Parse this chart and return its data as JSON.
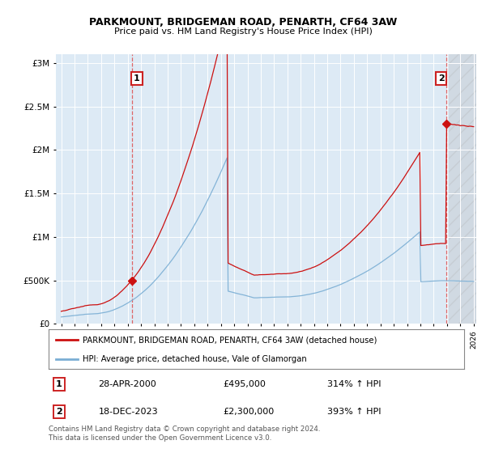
{
  "title1": "PARKMOUNT, BRIDGEMAN ROAD, PENARTH, CF64 3AW",
  "title2": "Price paid vs. HM Land Registry's House Price Index (HPI)",
  "legend_label1": "PARKMOUNT, BRIDGEMAN ROAD, PENARTH, CF64 3AW (detached house)",
  "legend_label2": "HPI: Average price, detached house, Vale of Glamorgan",
  "annotation1_date": "28-APR-2000",
  "annotation1_price": 495000,
  "annotation1_price_str": "£495,000",
  "annotation1_text": "314% ↑ HPI",
  "annotation2_date": "18-DEC-2023",
  "annotation2_price": 2300000,
  "annotation2_price_str": "£2,300,000",
  "annotation2_text": "393% ↑ HPI",
  "footnote": "Contains HM Land Registry data © Crown copyright and database right 2024.\nThis data is licensed under the Open Government Licence v3.0.",
  "hpi_color": "#7aaed4",
  "price_color": "#cc1111",
  "dashed_color": "#dd4444",
  "background_color": "#ddeaf5",
  "ylim_max": 3100000,
  "sale1_year": 2000.3,
  "sale2_year": 2023.95
}
